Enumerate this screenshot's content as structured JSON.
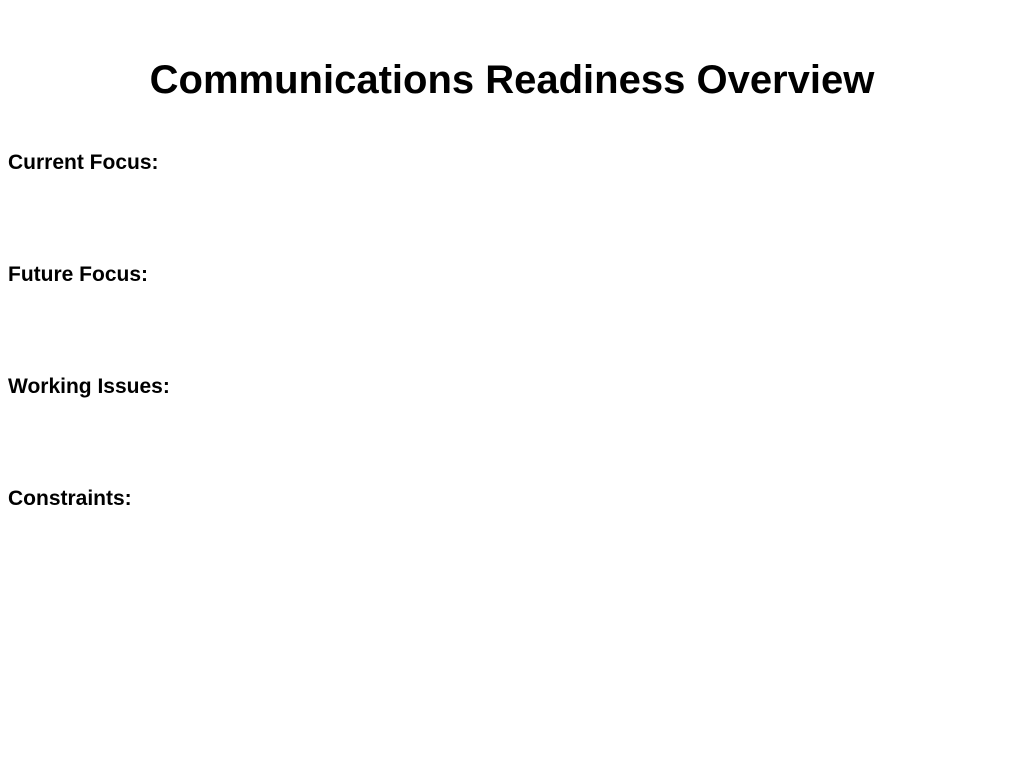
{
  "slide": {
    "title": "Communications Readiness Overview",
    "sections": [
      {
        "label": "Current Focus:"
      },
      {
        "label": "Future Focus:"
      },
      {
        "label": "Working Issues:"
      },
      {
        "label": "Constraints:"
      }
    ]
  },
  "style": {
    "background_color": "#ffffff",
    "text_color": "#000000",
    "title_fontsize": 40,
    "title_fontweight": "bold",
    "section_fontsize": 21,
    "section_fontweight": "bold",
    "font_family": "Arial, Helvetica, sans-serif"
  }
}
